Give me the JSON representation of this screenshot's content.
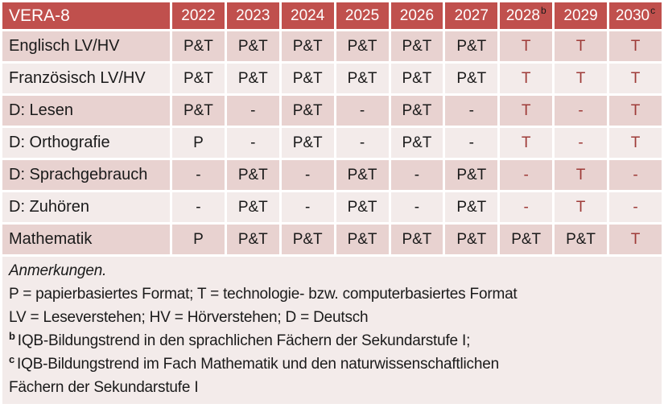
{
  "colors": {
    "header_bg": "#C0504D",
    "row_shade_dark": "#E8D2D0",
    "row_shade_light": "#F3EBEA",
    "accent_red_text": "#9E3B38",
    "header_text": "#FFFFFF",
    "body_text": "#1A1A1A"
  },
  "table": {
    "title": "VERA-8",
    "columns": [
      {
        "label": "2022",
        "sup": ""
      },
      {
        "label": "2023",
        "sup": ""
      },
      {
        "label": "2024",
        "sup": ""
      },
      {
        "label": "2025",
        "sup": ""
      },
      {
        "label": "2026",
        "sup": ""
      },
      {
        "label": "2027",
        "sup": ""
      },
      {
        "label": "2028",
        "sup": "b"
      },
      {
        "label": "2029",
        "sup": ""
      },
      {
        "label": "2030",
        "sup": "c"
      }
    ],
    "rows": [
      {
        "label": "Englisch LV/HV",
        "shade": "dark",
        "cells": [
          {
            "text": "P&T",
            "red": false
          },
          {
            "text": "P&T",
            "red": false
          },
          {
            "text": "P&T",
            "red": false
          },
          {
            "text": "P&T",
            "red": false
          },
          {
            "text": "P&T",
            "red": false
          },
          {
            "text": "P&T",
            "red": false
          },
          {
            "text": "T",
            "red": true
          },
          {
            "text": "T",
            "red": true
          },
          {
            "text": "T",
            "red": true
          }
        ]
      },
      {
        "label": "Französisch LV/HV",
        "shade": "light",
        "cells": [
          {
            "text": "P&T",
            "red": false
          },
          {
            "text": "P&T",
            "red": false
          },
          {
            "text": "P&T",
            "red": false
          },
          {
            "text": "P&T",
            "red": false
          },
          {
            "text": "P&T",
            "red": false
          },
          {
            "text": "P&T",
            "red": false
          },
          {
            "text": "T",
            "red": true
          },
          {
            "text": "T",
            "red": true
          },
          {
            "text": "T",
            "red": true
          }
        ]
      },
      {
        "label": "D: Lesen",
        "shade": "dark",
        "cells": [
          {
            "text": "P&T",
            "red": false
          },
          {
            "text": "-",
            "red": false
          },
          {
            "text": "P&T",
            "red": false
          },
          {
            "text": "-",
            "red": false
          },
          {
            "text": "P&T",
            "red": false
          },
          {
            "text": "-",
            "red": false
          },
          {
            "text": "T",
            "red": true
          },
          {
            "text": "-",
            "red": true
          },
          {
            "text": "T",
            "red": true
          }
        ]
      },
      {
        "label": "D: Orthografie",
        "shade": "light",
        "cells": [
          {
            "text": "P",
            "red": false
          },
          {
            "text": "-",
            "red": false
          },
          {
            "text": "P&T",
            "red": false
          },
          {
            "text": "-",
            "red": false
          },
          {
            "text": "P&T",
            "red": false
          },
          {
            "text": "-",
            "red": false
          },
          {
            "text": "T",
            "red": true
          },
          {
            "text": "-",
            "red": true
          },
          {
            "text": "T",
            "red": true
          }
        ]
      },
      {
        "label": "D: Sprachgebrauch",
        "shade": "dark",
        "cells": [
          {
            "text": "-",
            "red": false
          },
          {
            "text": "P&T",
            "red": false
          },
          {
            "text": "-",
            "red": false
          },
          {
            "text": "P&T",
            "red": false
          },
          {
            "text": "-",
            "red": false
          },
          {
            "text": "P&T",
            "red": false
          },
          {
            "text": "-",
            "red": true
          },
          {
            "text": "T",
            "red": true
          },
          {
            "text": "-",
            "red": true
          }
        ]
      },
      {
        "label": "D: Zuhören",
        "shade": "light",
        "cells": [
          {
            "text": "-",
            "red": false
          },
          {
            "text": "P&T",
            "red": false
          },
          {
            "text": "-",
            "red": false
          },
          {
            "text": "P&T",
            "red": false
          },
          {
            "text": "-",
            "red": false
          },
          {
            "text": "P&T",
            "red": false
          },
          {
            "text": "-",
            "red": true
          },
          {
            "text": "T",
            "red": true
          },
          {
            "text": "-",
            "red": true
          }
        ]
      },
      {
        "label": "Mathematik",
        "shade": "dark",
        "cells": [
          {
            "text": "P",
            "red": false
          },
          {
            "text": "P&T",
            "red": false
          },
          {
            "text": "P&T",
            "red": false
          },
          {
            "text": "P&T",
            "red": false
          },
          {
            "text": "P&T",
            "red": false
          },
          {
            "text": "P&T",
            "red": false
          },
          {
            "text": "P&T",
            "red": false
          },
          {
            "text": "P&T",
            "red": false
          },
          {
            "text": "T",
            "red": true
          }
        ]
      }
    ]
  },
  "notes": {
    "heading": "Anmerkungen.",
    "legend_lines": [
      "P = papierbasiertes Format; T = technologie- bzw. computerbasiertes Format",
      "LV = Leseverstehen; HV = Hörverstehen; D = Deutsch"
    ],
    "footnotes": [
      {
        "sup": "b",
        "text": "IQB-Bildungstrend in den sprachlichen Fächern der Sekundarstufe I;"
      },
      {
        "sup": "c",
        "text": "IQB-Bildungstrend im Fach Mathematik und den naturwissenschaftlichen Fächern der Sekundarstufe I"
      }
    ]
  }
}
